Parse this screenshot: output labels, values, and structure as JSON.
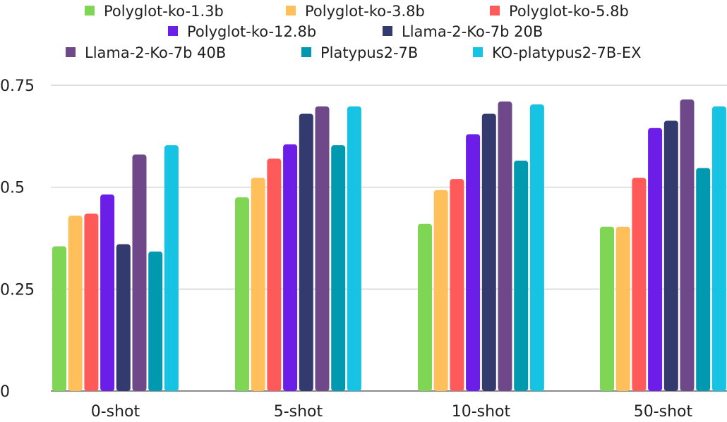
{
  "chart_data": {
    "type": "bar",
    "title": "",
    "xlabel": "",
    "ylabel": "",
    "categories": [
      "0-shot",
      "5-shot",
      "10-shot",
      "50-shot"
    ],
    "ylim": [
      0,
      0.75
    ],
    "yticks": [
      {
        "value": 0,
        "label": "0"
      },
      {
        "value": 0.25,
        "label": "0.25"
      },
      {
        "value": 0.5,
        "label": "0.5"
      },
      {
        "value": 0.75,
        "label": "0.75"
      }
    ],
    "grid": true,
    "legend_position": "top",
    "series": [
      {
        "name": "Polyglot-ko-1.3b",
        "color": "#7fd655",
        "values": [
          0.355,
          0.475,
          0.41,
          0.403
        ]
      },
      {
        "name": "Polyglot-ko-3.8b",
        "color": "#ffbf5a",
        "values": [
          0.43,
          0.523,
          0.493,
          0.403
        ]
      },
      {
        "name": "Polyglot-ko-5.8b",
        "color": "#ff5a5a",
        "values": [
          0.435,
          0.57,
          0.52,
          0.523
        ]
      },
      {
        "name": "Polyglot-ko-12.8b",
        "color": "#6a1ee8",
        "values": [
          0.482,
          0.605,
          0.63,
          0.645
        ]
      },
      {
        "name": "Llama-2-Ko-7b 20B",
        "color": "#333a6e",
        "values": [
          0.36,
          0.68,
          0.68,
          0.663
        ]
      },
      {
        "name": "Llama-2-Ko-7b 40B",
        "color": "#6e4888",
        "values": [
          0.58,
          0.698,
          0.71,
          0.715
        ]
      },
      {
        "name": "Platypus2-7B",
        "color": "#0099b0",
        "values": [
          0.342,
          0.603,
          0.565,
          0.547
        ]
      },
      {
        "name": "KO-platypus2-7B-EX",
        "color": "#16c3e2",
        "values": [
          0.603,
          0.698,
          0.703,
          0.698
        ]
      }
    ]
  }
}
